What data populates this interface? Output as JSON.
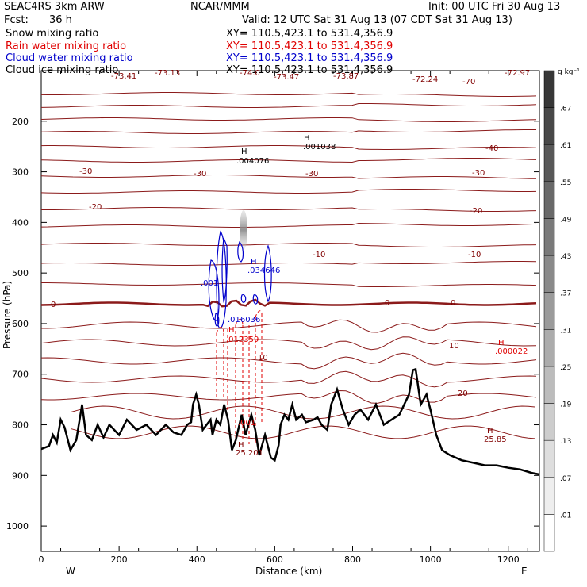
{
  "header": {
    "title": "SEAC4RS  3km ARW",
    "org": "NCAR/MMM",
    "init": "Init: 00 UTC Fri 30 Aug 13",
    "fcst_label": "Fcst:",
    "fcst_value": "36 h",
    "valid": "Valid: 12 UTC Sat 31 Aug 13 (07 CDT Sat 31 Aug 13)"
  },
  "fields": [
    {
      "name": "Snow mixing ratio",
      "xy": "XY= 110.5,423.1 to 531.4,356.9",
      "color": "#000000"
    },
    {
      "name": "Rain water mixing ratio",
      "xy": "XY= 110.5,423.1 to 531.4,356.9",
      "color": "#e00000"
    },
    {
      "name": "Cloud water mixing ratio",
      "xy": "XY= 110.5,423.1 to 531.4,356.9",
      "color": "#0000cc"
    },
    {
      "name": "Cloud ice mixing ratio",
      "xy": "XY= 110.5,423.1 to 531.4,356.9",
      "color": "#000000"
    }
  ],
  "chart_data": {
    "type": "contour",
    "xlabel": "Distance (km)",
    "ylabel": "Pressure (hPa)",
    "xlim": [
      0,
      1280
    ],
    "ylim": [
      1050,
      100
    ],
    "x_ticks": [
      "0",
      "200",
      "400",
      "600",
      "800",
      "1000",
      "1200"
    ],
    "y_ticks": [
      "200",
      "300",
      "400",
      "500",
      "600",
      "700",
      "800",
      "900",
      "1000"
    ],
    "x_end_labels": {
      "left": "W",
      "right": "E"
    },
    "colorbar": {
      "unit": "g kg⁻¹",
      "levels": [
        ".01",
        ".07",
        ".13",
        ".19",
        ".25",
        ".31",
        ".37",
        ".43",
        ".49",
        ".55",
        ".61",
        ".67"
      ]
    },
    "temperature_contour_labels": [
      "-73.41",
      "-73.13",
      "-74.0",
      "-73.47",
      "-73.87",
      "-72.24",
      "-70",
      "-72.97",
      "-40",
      "-30",
      "-30",
      "-30",
      "-30",
      "-20",
      "-20",
      "-10",
      "-10",
      "0",
      "0",
      "0",
      "10",
      "10",
      "20",
      "25.85",
      "25.201"
    ],
    "extrema_labels": [
      {
        "marker": "H",
        "value": ".001038"
      },
      {
        "marker": "H",
        "value": ".004076"
      },
      {
        "marker": "H",
        "value": ".034646"
      },
      {
        "marker": "",
        "value": ".001"
      },
      {
        "marker": "",
        "value": ".016036"
      },
      {
        "marker": "H",
        "value": ".012359"
      },
      {
        "marker": "H",
        "value": ".000022"
      },
      {
        "marker": "",
        "value": ".001"
      },
      {
        "marker": "H",
        "value": ""
      },
      {
        "marker": "H",
        "value": ""
      }
    ],
    "terrain_pressure": [
      [
        0,
        848
      ],
      [
        20,
        842
      ],
      [
        30,
        820
      ],
      [
        40,
        835
      ],
      [
        50,
        790
      ],
      [
        60,
        805
      ],
      [
        75,
        850
      ],
      [
        90,
        830
      ],
      [
        105,
        760
      ],
      [
        115,
        820
      ],
      [
        130,
        830
      ],
      [
        145,
        800
      ],
      [
        160,
        825
      ],
      [
        175,
        800
      ],
      [
        200,
        820
      ],
      [
        220,
        790
      ],
      [
        245,
        810
      ],
      [
        270,
        800
      ],
      [
        295,
        820
      ],
      [
        320,
        800
      ],
      [
        340,
        815
      ],
      [
        360,
        820
      ],
      [
        375,
        800
      ],
      [
        385,
        795
      ],
      [
        390,
        760
      ],
      [
        398,
        740
      ],
      [
        405,
        760
      ],
      [
        415,
        810
      ],
      [
        425,
        800
      ],
      [
        435,
        790
      ],
      [
        440,
        820
      ],
      [
        450,
        790
      ],
      [
        460,
        800
      ],
      [
        470,
        760
      ],
      [
        480,
        790
      ],
      [
        490,
        850
      ],
      [
        500,
        830
      ],
      [
        515,
        780
      ],
      [
        525,
        820
      ],
      [
        540,
        780
      ],
      [
        550,
        810
      ],
      [
        560,
        860
      ],
      [
        575,
        820
      ],
      [
        590,
        865
      ],
      [
        600,
        870
      ],
      [
        610,
        840
      ],
      [
        615,
        800
      ],
      [
        625,
        780
      ],
      [
        635,
        790
      ],
      [
        645,
        760
      ],
      [
        655,
        790
      ],
      [
        670,
        780
      ],
      [
        680,
        795
      ],
      [
        700,
        790
      ],
      [
        710,
        785
      ],
      [
        720,
        800
      ],
      [
        735,
        810
      ],
      [
        745,
        760
      ],
      [
        760,
        730
      ],
      [
        775,
        770
      ],
      [
        790,
        800
      ],
      [
        805,
        780
      ],
      [
        820,
        770
      ],
      [
        840,
        790
      ],
      [
        860,
        760
      ],
      [
        880,
        800
      ],
      [
        900,
        790
      ],
      [
        920,
        780
      ],
      [
        945,
        740
      ],
      [
        955,
        692
      ],
      [
        962,
        690
      ],
      [
        975,
        760
      ],
      [
        990,
        740
      ],
      [
        1000,
        770
      ],
      [
        1015,
        820
      ],
      [
        1030,
        850
      ],
      [
        1050,
        860
      ],
      [
        1080,
        870
      ],
      [
        1110,
        875
      ],
      [
        1140,
        880
      ],
      [
        1170,
        880
      ],
      [
        1200,
        885
      ],
      [
        1230,
        888
      ],
      [
        1260,
        895
      ],
      [
        1280,
        898
      ]
    ]
  }
}
